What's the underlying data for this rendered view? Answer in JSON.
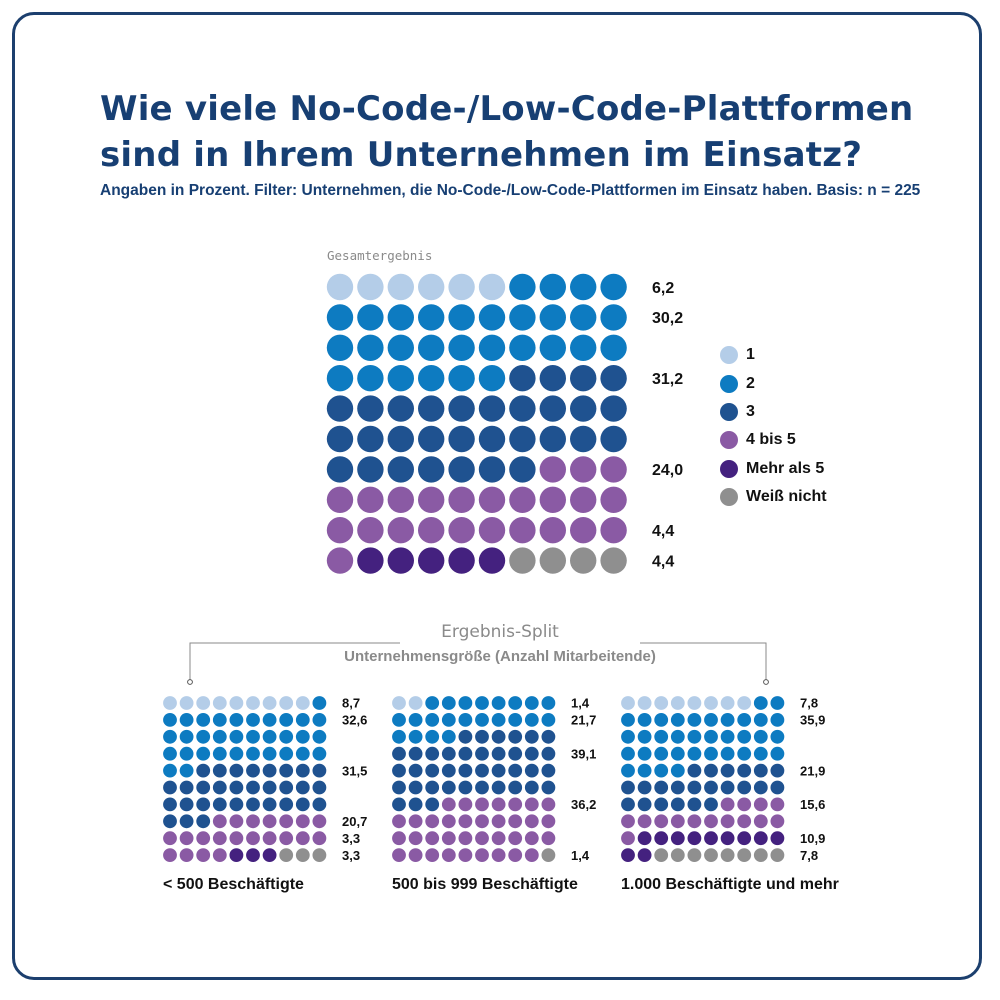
{
  "header": {
    "title_lines": [
      "Wie viele No-Code-/Low-Code-Plattformen",
      "sind in Ihrem Unternehmen im Einsatz?"
    ],
    "subtitle": "Angaben in Prozent. Filter: Unternehmen, die No-Code-/Low-Code-Plattformen im Einsatz haben. Basis: n = 225"
  },
  "split": {
    "title": "Ergebnis-Split",
    "subtitle": "Unternehmensgröße (Anzahl Mitarbeitende)"
  },
  "colors": {
    "1": "#b4cde8",
    "2": "#0d7bc1",
    "3": "#1f5290",
    "4 bis 5": "#8a5aa4",
    "Mehr als 5": "#44217f",
    "Weiß nicht": "#8f8f8f",
    "frame": "#1c3f6e",
    "title": "#173f73"
  },
  "chart_data": [
    {
      "type": "waffle",
      "title": "Gesamtergebnis",
      "categories": [
        "1",
        "2",
        "3",
        "4 bis 5",
        "Mehr als 5",
        "Weiß nicht"
      ],
      "values": [
        6.2,
        30.2,
        31.2,
        24.0,
        4.4,
        4.4
      ],
      "labels": [
        "6,2",
        "30,2",
        "31,2",
        "24,0",
        "4,4",
        "4,4"
      ],
      "label_rows": [
        0,
        1,
        3,
        6,
        8,
        9
      ],
      "grid": [
        10,
        10
      ],
      "legend": "right"
    },
    {
      "type": "waffle",
      "title": "< 500 Beschäftigte",
      "categories": [
        "1",
        "2",
        "3",
        "4 bis 5",
        "Mehr als 5",
        "Weiß nicht"
      ],
      "values": [
        8.7,
        32.6,
        31.5,
        20.7,
        3.3,
        3.3
      ],
      "labels": [
        "8,7",
        "32,6",
        "31,5",
        "20,7",
        "3,3",
        "3,3"
      ],
      "label_rows": [
        0,
        1,
        4,
        7,
        8,
        9
      ],
      "grid": [
        10,
        10
      ]
    },
    {
      "type": "waffle",
      "title": "500 bis 999 Beschäftigte",
      "categories": [
        "1",
        "2",
        "3",
        "4 bis 5",
        "Mehr als 5",
        "Weiß nicht"
      ],
      "values": [
        1.4,
        21.7,
        39.1,
        36.2,
        0,
        1.4
      ],
      "labels": [
        "1,4",
        "21,7",
        "39,1",
        "36,2",
        "",
        "1,4"
      ],
      "label_rows": [
        0,
        1,
        3,
        6,
        8,
        9
      ],
      "grid": [
        10,
        10
      ]
    },
    {
      "type": "waffle",
      "title": "1.000 Beschäftigte und mehr",
      "categories": [
        "1",
        "2",
        "3",
        "4 bis 5",
        "Mehr als 5",
        "Weiß nicht"
      ],
      "values": [
        7.8,
        35.9,
        21.9,
        15.6,
        10.9,
        7.8
      ],
      "labels": [
        "7,8",
        "35,9",
        "21,9",
        "15,6",
        "10,9",
        "7,8"
      ],
      "label_rows": [
        0,
        1,
        4,
        6,
        8,
        9
      ],
      "grid": [
        10,
        10
      ]
    }
  ]
}
